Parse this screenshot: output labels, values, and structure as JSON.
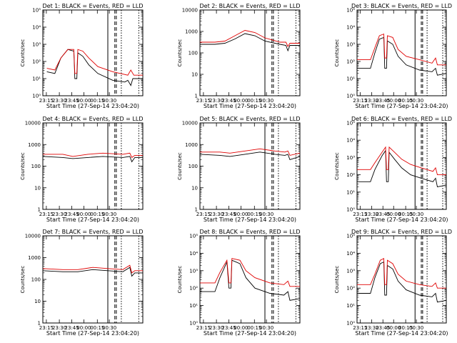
{
  "chart_data": [
    {
      "type": "line",
      "title": "Det 1: BLACK = Events, RED = LLD",
      "scale": "log",
      "yticks": [
        "10⁰",
        "10¹",
        "10²",
        "10³",
        "10⁴",
        "10⁵"
      ],
      "ymin": 0,
      "ymax": 5,
      "red": [
        [
          0,
          null
        ],
        [
          0.04,
          1.6
        ],
        [
          0.12,
          1.5
        ],
        [
          0.18,
          2.2
        ],
        [
          0.25,
          2.7
        ],
        [
          0.31,
          2.7
        ],
        [
          0.32,
          1.3
        ],
        [
          0.34,
          1.3
        ],
        [
          0.35,
          2.7
        ],
        [
          0.4,
          2.6
        ],
        [
          0.46,
          2.2
        ],
        [
          0.55,
          1.7
        ],
        [
          0.7,
          1.4
        ],
        [
          0.85,
          1.2
        ],
        [
          0.88,
          1.5
        ],
        [
          0.91,
          1.2
        ],
        [
          1,
          1.2
        ]
      ],
      "black": [
        [
          0.04,
          1.4
        ],
        [
          0.12,
          1.3
        ],
        [
          0.18,
          2.2
        ],
        [
          0.25,
          2.7
        ],
        [
          0.31,
          2.6
        ],
        [
          0.32,
          1.0
        ],
        [
          0.34,
          1.0
        ],
        [
          0.35,
          2.5
        ],
        [
          0.4,
          2.3
        ],
        [
          0.46,
          1.8
        ],
        [
          0.55,
          1.3
        ],
        [
          0.7,
          0.9
        ],
        [
          0.82,
          0.8
        ],
        [
          0.85,
          0.9
        ],
        [
          0.88,
          0.6
        ],
        [
          0.9,
          1.0
        ],
        [
          1,
          1.0
        ]
      ]
    },
    {
      "type": "line",
      "title": "Det 2: BLACK = Events, RED = LLD",
      "scale": "log",
      "yticks": [
        "1",
        "10",
        "100",
        "1000",
        "10000"
      ],
      "ymin": 0,
      "ymax": 4,
      "red": [
        [
          0,
          2.5
        ],
        [
          0.15,
          2.5
        ],
        [
          0.25,
          2.55
        ],
        [
          0.35,
          2.8
        ],
        [
          0.45,
          3.05
        ],
        [
          0.55,
          2.95
        ],
        [
          0.65,
          2.7
        ],
        [
          0.8,
          2.5
        ],
        [
          0.86,
          2.5
        ],
        [
          0.88,
          2.3
        ],
        [
          0.9,
          2.45
        ],
        [
          1,
          2.45
        ]
      ],
      "black": [
        [
          0,
          2.4
        ],
        [
          0.15,
          2.4
        ],
        [
          0.25,
          2.45
        ],
        [
          0.35,
          2.65
        ],
        [
          0.45,
          2.9
        ],
        [
          0.55,
          2.8
        ],
        [
          0.65,
          2.55
        ],
        [
          0.8,
          2.4
        ],
        [
          0.86,
          2.35
        ],
        [
          0.88,
          2.1
        ],
        [
          0.9,
          2.35
        ],
        [
          1,
          2.35
        ]
      ]
    },
    {
      "type": "line",
      "title": "Det 3: BLACK = Events, RED = LLD",
      "scale": "log",
      "yticks": [
        "10⁰",
        "10¹",
        "10²",
        "10³",
        "10⁴",
        "10⁵"
      ],
      "ymin": 0,
      "ymax": 5,
      "red": [
        [
          0,
          2.1
        ],
        [
          0.15,
          2.1
        ],
        [
          0.2,
          2.8
        ],
        [
          0.25,
          3.5
        ],
        [
          0.3,
          3.6
        ],
        [
          0.31,
          2.2
        ],
        [
          0.33,
          2.2
        ],
        [
          0.34,
          3.5
        ],
        [
          0.4,
          3.4
        ],
        [
          0.46,
          2.7
        ],
        [
          0.55,
          2.3
        ],
        [
          0.7,
          2.1
        ],
        [
          0.84,
          1.9
        ],
        [
          0.88,
          2.2
        ],
        [
          0.9,
          1.8
        ],
        [
          1,
          1.8
        ]
      ],
      "black": [
        [
          0,
          1.6
        ],
        [
          0.15,
          1.6
        ],
        [
          0.2,
          2.5
        ],
        [
          0.25,
          3.3
        ],
        [
          0.3,
          3.4
        ],
        [
          0.31,
          1.6
        ],
        [
          0.33,
          1.6
        ],
        [
          0.34,
          3.2
        ],
        [
          0.4,
          3.0
        ],
        [
          0.46,
          2.3
        ],
        [
          0.55,
          1.8
        ],
        [
          0.7,
          1.5
        ],
        [
          0.84,
          1.4
        ],
        [
          0.88,
          1.6
        ],
        [
          0.9,
          1.2
        ],
        [
          1,
          1.3
        ]
      ]
    },
    {
      "type": "line",
      "title": "Det 4: BLACK = Events, RED = LLD",
      "scale": "log",
      "yticks": [
        "1",
        "10",
        "100",
        "1000",
        "10000"
      ],
      "ymin": 0,
      "ymax": 4,
      "red": [
        [
          0,
          2.55
        ],
        [
          0.2,
          2.55
        ],
        [
          0.3,
          2.45
        ],
        [
          0.45,
          2.55
        ],
        [
          0.6,
          2.6
        ],
        [
          0.8,
          2.55
        ],
        [
          0.87,
          2.6
        ],
        [
          0.89,
          2.4
        ],
        [
          0.92,
          2.5
        ],
        [
          1,
          2.5
        ]
      ],
      "black": [
        [
          0,
          2.45
        ],
        [
          0.2,
          2.4
        ],
        [
          0.3,
          2.35
        ],
        [
          0.45,
          2.4
        ],
        [
          0.6,
          2.45
        ],
        [
          0.8,
          2.4
        ],
        [
          0.87,
          2.45
        ],
        [
          0.89,
          2.2
        ],
        [
          0.92,
          2.4
        ],
        [
          1,
          2.4
        ]
      ]
    },
    {
      "type": "line",
      "title": "Det 5: BLACK = Events, RED = LLD",
      "scale": "log",
      "yticks": [
        "1",
        "10",
        "100",
        "1000",
        "10000"
      ],
      "ymin": 0,
      "ymax": 4,
      "red": [
        [
          0,
          2.65
        ],
        [
          0.2,
          2.65
        ],
        [
          0.3,
          2.6
        ],
        [
          0.45,
          2.7
        ],
        [
          0.6,
          2.8
        ],
        [
          0.75,
          2.7
        ],
        [
          0.85,
          2.65
        ],
        [
          0.88,
          2.7
        ],
        [
          0.9,
          2.5
        ],
        [
          1,
          2.6
        ]
      ],
      "black": [
        [
          0,
          2.55
        ],
        [
          0.2,
          2.5
        ],
        [
          0.3,
          2.45
        ],
        [
          0.45,
          2.55
        ],
        [
          0.6,
          2.65
        ],
        [
          0.75,
          2.55
        ],
        [
          0.85,
          2.5
        ],
        [
          0.88,
          2.55
        ],
        [
          0.9,
          2.3
        ],
        [
          1,
          2.45
        ]
      ]
    },
    {
      "type": "line",
      "title": "Det 6: BLACK = Events, RED = LLD",
      "scale": "log",
      "yticks": [
        "10⁰",
        "10¹",
        "10²",
        "10³",
        "10⁴",
        "10⁵"
      ],
      "ymin": 0,
      "ymax": 5,
      "red": [
        [
          0,
          2.3
        ],
        [
          0.15,
          2.3
        ],
        [
          0.2,
          2.7
        ],
        [
          0.28,
          3.3
        ],
        [
          0.32,
          3.6
        ],
        [
          0.33,
          2.3
        ],
        [
          0.35,
          2.3
        ],
        [
          0.36,
          3.6
        ],
        [
          0.42,
          3.3
        ],
        [
          0.5,
          2.9
        ],
        [
          0.6,
          2.6
        ],
        [
          0.72,
          2.4
        ],
        [
          0.85,
          2.2
        ],
        [
          0.88,
          2.4
        ],
        [
          0.9,
          2.0
        ],
        [
          1,
          2.0
        ]
      ],
      "black": [
        [
          0,
          1.6
        ],
        [
          0.15,
          1.6
        ],
        [
          0.2,
          2.3
        ],
        [
          0.28,
          3.1
        ],
        [
          0.32,
          3.4
        ],
        [
          0.33,
          1.6
        ],
        [
          0.35,
          1.6
        ],
        [
          0.36,
          3.3
        ],
        [
          0.42,
          2.9
        ],
        [
          0.5,
          2.4
        ],
        [
          0.6,
          2.0
        ],
        [
          0.72,
          1.8
        ],
        [
          0.85,
          1.6
        ],
        [
          0.88,
          1.8
        ],
        [
          0.9,
          1.3
        ],
        [
          1,
          1.4
        ]
      ]
    },
    {
      "type": "line",
      "title": "Det 7: BLACK = Events, RED = LLD",
      "scale": "log",
      "yticks": [
        "1",
        "10",
        "100",
        "1000",
        "10000"
      ],
      "ymin": 0,
      "ymax": 4,
      "red": [
        [
          0,
          2.5
        ],
        [
          0.2,
          2.45
        ],
        [
          0.35,
          2.45
        ],
        [
          0.5,
          2.55
        ],
        [
          0.65,
          2.5
        ],
        [
          0.8,
          2.45
        ],
        [
          0.87,
          2.65
        ],
        [
          0.89,
          2.3
        ],
        [
          0.92,
          2.4
        ],
        [
          1,
          2.4
        ]
      ],
      "black": [
        [
          0,
          2.4
        ],
        [
          0.2,
          2.35
        ],
        [
          0.35,
          2.35
        ],
        [
          0.5,
          2.45
        ],
        [
          0.65,
          2.4
        ],
        [
          0.8,
          2.35
        ],
        [
          0.87,
          2.55
        ],
        [
          0.89,
          2.15
        ],
        [
          0.92,
          2.3
        ],
        [
          1,
          2.3
        ]
      ]
    },
    {
      "type": "line",
      "title": "Det 8: BLACK = Events, RED = LLD",
      "scale": "log",
      "yticks": [
        "10⁰",
        "10¹",
        "10²",
        "10³",
        "10⁴",
        "10⁵"
      ],
      "ymin": 0,
      "ymax": 5,
      "red": [
        [
          0,
          2.3
        ],
        [
          0.15,
          2.3
        ],
        [
          0.2,
          2.9
        ],
        [
          0.27,
          3.6
        ],
        [
          0.29,
          2.3
        ],
        [
          0.31,
          2.3
        ],
        [
          0.32,
          3.7
        ],
        [
          0.4,
          3.6
        ],
        [
          0.46,
          3.0
        ],
        [
          0.55,
          2.6
        ],
        [
          0.7,
          2.3
        ],
        [
          0.84,
          2.2
        ],
        [
          0.88,
          2.4
        ],
        [
          0.9,
          2.1
        ],
        [
          1,
          2.1
        ]
      ],
      "black": [
        [
          0,
          1.8
        ],
        [
          0.15,
          1.8
        ],
        [
          0.2,
          2.6
        ],
        [
          0.27,
          3.5
        ],
        [
          0.29,
          2.0
        ],
        [
          0.31,
          2.0
        ],
        [
          0.32,
          3.6
        ],
        [
          0.4,
          3.4
        ],
        [
          0.46,
          2.6
        ],
        [
          0.55,
          2.0
        ],
        [
          0.7,
          1.7
        ],
        [
          0.84,
          1.6
        ],
        [
          0.88,
          1.8
        ],
        [
          0.9,
          1.3
        ],
        [
          1,
          1.4
        ]
      ]
    },
    {
      "type": "line",
      "title": "Det 9: BLACK = Events, RED = LLD",
      "scale": "log",
      "yticks": [
        "10⁰",
        "10¹",
        "10²",
        "10³",
        "10⁴",
        "10⁵"
      ],
      "ymin": 0,
      "ymax": 5,
      "red": [
        [
          0,
          2.2
        ],
        [
          0.15,
          2.2
        ],
        [
          0.2,
          2.8
        ],
        [
          0.26,
          3.6
        ],
        [
          0.3,
          3.7
        ],
        [
          0.31,
          2.2
        ],
        [
          0.33,
          2.2
        ],
        [
          0.34,
          3.6
        ],
        [
          0.4,
          3.4
        ],
        [
          0.46,
          2.8
        ],
        [
          0.55,
          2.4
        ],
        [
          0.7,
          2.2
        ],
        [
          0.84,
          2.1
        ],
        [
          0.88,
          2.3
        ],
        [
          0.9,
          2.0
        ],
        [
          1,
          2.0
        ]
      ],
      "black": [
        [
          0,
          1.7
        ],
        [
          0.15,
          1.7
        ],
        [
          0.2,
          2.6
        ],
        [
          0.26,
          3.4
        ],
        [
          0.3,
          3.5
        ],
        [
          0.31,
          1.6
        ],
        [
          0.33,
          1.6
        ],
        [
          0.34,
          3.3
        ],
        [
          0.4,
          3.1
        ],
        [
          0.46,
          2.4
        ],
        [
          0.55,
          1.9
        ],
        [
          0.7,
          1.6
        ],
        [
          0.84,
          1.5
        ],
        [
          0.88,
          1.7
        ],
        [
          0.9,
          1.2
        ],
        [
          1,
          1.3
        ]
      ]
    }
  ],
  "xticks": [
    "23:15",
    "23:30",
    "23:45",
    "00:00",
    "00:15",
    "00:30"
  ],
  "xlabel": "Start Time (27-Sep-14 23:04:20)",
  "ylabel": "Counts/sec",
  "colors": {
    "events": "#000000",
    "lld": "#e00000"
  }
}
